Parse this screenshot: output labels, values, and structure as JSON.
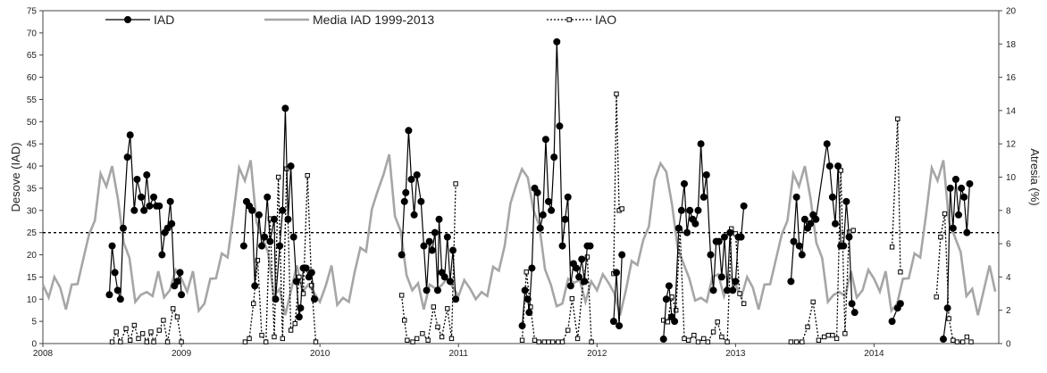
{
  "chart_data": {
    "type": "line",
    "ylabel_left": "Desove (IAD)",
    "ylabel_right": "Atresia (%)",
    "y_left_lim": [
      0,
      75
    ],
    "y_left_ticks": [
      0,
      5,
      10,
      15,
      20,
      25,
      30,
      35,
      40,
      45,
      50,
      55,
      60,
      65,
      70,
      75
    ],
    "y_right_lim": [
      0,
      20
    ],
    "y_right_ticks": [
      0,
      2,
      4,
      6,
      8,
      10,
      12,
      14,
      16,
      18,
      20
    ],
    "x_lim": [
      2008.0,
      2014.9
    ],
    "x_ticks": [
      "2008",
      "2009",
      "2010",
      "2011",
      "2012",
      "2013",
      "2014"
    ],
    "reference_line": {
      "axis": "left",
      "value": 25
    },
    "legend": {
      "placement": "top",
      "entries": [
        "IAD",
        "Media IAD  1999-2013",
        "IAO"
      ]
    },
    "colors": {
      "iad": "#000000",
      "media": "#a6a6a6",
      "iao": "#000000",
      "reference": "#000000"
    },
    "series": [
      {
        "name": "Media IAD  1999-2013",
        "axis": "left",
        "values_by_month": [
          12,
          13,
          15,
          10,
          9,
          12,
          16,
          19,
          22,
          29,
          37,
          38,
          40,
          30,
          24,
          18,
          12,
          11,
          9,
          12,
          15,
          13,
          12,
          14
        ]
      },
      {
        "name": "IAD",
        "axis": "left",
        "points": [
          [
            2008.48,
            11
          ],
          [
            2008.5,
            22
          ],
          [
            2008.52,
            16
          ],
          [
            2008.54,
            12
          ],
          [
            2008.56,
            10
          ],
          [
            2008.58,
            26
          ],
          [
            2008.61,
            42
          ],
          [
            2008.63,
            47
          ],
          [
            2008.66,
            30
          ],
          [
            2008.68,
            37
          ],
          [
            2008.71,
            33
          ],
          [
            2008.73,
            30
          ],
          [
            2008.75,
            38
          ],
          [
            2008.77,
            31
          ],
          [
            2008.8,
            33
          ],
          [
            2008.82,
            31
          ],
          [
            2008.84,
            31
          ],
          [
            2008.86,
            20
          ],
          [
            2008.88,
            25
          ],
          [
            2008.9,
            26
          ],
          [
            2008.92,
            32
          ],
          [
            2008.93,
            27
          ],
          [
            2008.95,
            13
          ],
          [
            2008.97,
            14
          ],
          [
            2008.99,
            16
          ],
          [
            2009.0,
            11
          ],
          [
            2009.45,
            22
          ],
          [
            2009.47,
            32
          ],
          [
            2009.49,
            31
          ],
          [
            2009.51,
            30
          ],
          [
            2009.53,
            13
          ],
          [
            2009.56,
            29
          ],
          [
            2009.58,
            22
          ],
          [
            2009.6,
            24
          ],
          [
            2009.62,
            33
          ],
          [
            2009.64,
            23
          ],
          [
            2009.67,
            28
          ],
          [
            2009.68,
            10
          ],
          [
            2009.71,
            22
          ],
          [
            2009.73,
            30
          ],
          [
            2009.75,
            53
          ],
          [
            2009.77,
            28
          ],
          [
            2009.79,
            40
          ],
          [
            2009.81,
            24
          ],
          [
            2009.83,
            14
          ],
          [
            2009.85,
            6
          ],
          [
            2009.86,
            8
          ],
          [
            2009.88,
            17
          ],
          [
            2009.9,
            17
          ],
          [
            2009.92,
            15
          ],
          [
            2009.94,
            16
          ],
          [
            2009.96,
            10
          ],
          [
            2010.59,
            20
          ],
          [
            2010.61,
            32
          ],
          [
            2010.62,
            34
          ],
          [
            2010.64,
            48
          ],
          [
            2010.66,
            37
          ],
          [
            2010.68,
            29
          ],
          [
            2010.7,
            38
          ],
          [
            2010.73,
            32
          ],
          [
            2010.75,
            22
          ],
          [
            2010.77,
            12
          ],
          [
            2010.79,
            23
          ],
          [
            2010.81,
            21
          ],
          [
            2010.83,
            25
          ],
          [
            2010.85,
            12
          ],
          [
            2010.86,
            28
          ],
          [
            2010.88,
            16
          ],
          [
            2010.9,
            15
          ],
          [
            2010.92,
            24
          ],
          [
            2010.94,
            14
          ],
          [
            2010.96,
            21
          ],
          [
            2010.98,
            10
          ],
          [
            2011.46,
            4
          ],
          [
            2011.48,
            12
          ],
          [
            2011.5,
            10
          ],
          [
            2011.51,
            7
          ],
          [
            2011.53,
            17
          ],
          [
            2011.55,
            35
          ],
          [
            2011.57,
            34
          ],
          [
            2011.59,
            26
          ],
          [
            2011.61,
            29
          ],
          [
            2011.63,
            46
          ],
          [
            2011.65,
            32
          ],
          [
            2011.67,
            30
          ],
          [
            2011.69,
            42
          ],
          [
            2011.71,
            68
          ],
          [
            2011.73,
            49
          ],
          [
            2011.75,
            22
          ],
          [
            2011.77,
            28
          ],
          [
            2011.79,
            33
          ],
          [
            2011.81,
            13
          ],
          [
            2011.83,
            18
          ],
          [
            2011.85,
            17
          ],
          [
            2011.87,
            15
          ],
          [
            2011.89,
            19
          ],
          [
            2011.91,
            14
          ],
          [
            2011.93,
            22
          ],
          [
            2011.95,
            22
          ],
          [
            2012.12,
            5
          ],
          [
            2012.14,
            16
          ],
          [
            2012.16,
            4
          ],
          [
            2012.18,
            20
          ],
          [
            2012.48,
            1
          ],
          [
            2012.5,
            10
          ],
          [
            2012.52,
            13
          ],
          [
            2012.54,
            6
          ],
          [
            2012.56,
            5
          ],
          [
            2012.59,
            26
          ],
          [
            2012.61,
            30
          ],
          [
            2012.63,
            36
          ],
          [
            2012.65,
            25
          ],
          [
            2012.67,
            30
          ],
          [
            2012.69,
            28
          ],
          [
            2012.71,
            27
          ],
          [
            2012.73,
            30
          ],
          [
            2012.75,
            45
          ],
          [
            2012.77,
            33
          ],
          [
            2012.79,
            38
          ],
          [
            2012.82,
            20
          ],
          [
            2012.84,
            12
          ],
          [
            2012.86,
            23
          ],
          [
            2012.88,
            23
          ],
          [
            2012.9,
            15
          ],
          [
            2012.92,
            24
          ],
          [
            2012.94,
            12
          ],
          [
            2012.96,
            25
          ],
          [
            2012.98,
            12
          ],
          [
            2013.0,
            14
          ],
          [
            2013.02,
            24
          ],
          [
            2013.04,
            24
          ],
          [
            2013.06,
            31
          ],
          [
            2013.4,
            14
          ],
          [
            2013.42,
            23
          ],
          [
            2013.44,
            33
          ],
          [
            2013.46,
            22
          ],
          [
            2013.48,
            20
          ],
          [
            2013.5,
            28
          ],
          [
            2013.52,
            26
          ],
          [
            2013.54,
            27
          ],
          [
            2013.56,
            29
          ],
          [
            2013.58,
            28
          ],
          [
            2013.66,
            45
          ],
          [
            2013.68,
            40
          ],
          [
            2013.7,
            33
          ],
          [
            2013.72,
            27
          ],
          [
            2013.74,
            40
          ],
          [
            2013.76,
            22
          ],
          [
            2013.78,
            22
          ],
          [
            2013.8,
            32
          ],
          [
            2013.82,
            24
          ],
          [
            2013.84,
            9
          ],
          [
            2013.86,
            7
          ],
          [
            2014.13,
            5
          ],
          [
            2014.17,
            8
          ],
          [
            2014.19,
            9
          ],
          [
            2014.5,
            1
          ],
          [
            2014.53,
            8
          ],
          [
            2014.55,
            35
          ],
          [
            2014.57,
            26
          ],
          [
            2014.59,
            37
          ],
          [
            2014.61,
            29
          ],
          [
            2014.63,
            35
          ],
          [
            2014.65,
            33
          ],
          [
            2014.67,
            25
          ],
          [
            2014.69,
            36
          ]
        ]
      },
      {
        "name": "IAO",
        "axis": "right",
        "points": [
          [
            2008.5,
            0.1
          ],
          [
            2008.53,
            0.7
          ],
          [
            2008.56,
            0.1
          ],
          [
            2008.6,
            0.9
          ],
          [
            2008.63,
            0.2
          ],
          [
            2008.66,
            1.1
          ],
          [
            2008.69,
            0.3
          ],
          [
            2008.72,
            0.6
          ],
          [
            2008.75,
            0.1
          ],
          [
            2008.78,
            0.7
          ],
          [
            2008.8,
            0.1
          ],
          [
            2008.84,
            0.8
          ],
          [
            2008.87,
            1.4
          ],
          [
            2008.9,
            0.1
          ],
          [
            2008.94,
            2.1
          ],
          [
            2008.97,
            1.6
          ],
          [
            2009.0,
            0.1
          ],
          [
            2009.46,
            0.1
          ],
          [
            2009.49,
            0.3
          ],
          [
            2009.52,
            2.4
          ],
          [
            2009.55,
            5.0
          ],
          [
            2009.58,
            0.5
          ],
          [
            2009.61,
            0.1
          ],
          [
            2009.64,
            7.5
          ],
          [
            2009.67,
            0.4
          ],
          [
            2009.7,
            10.0
          ],
          [
            2009.73,
            0.3
          ],
          [
            2009.76,
            10.5
          ],
          [
            2009.79,
            0.8
          ],
          [
            2009.82,
            1.2
          ],
          [
            2009.85,
            4.0
          ],
          [
            2009.88,
            3.0
          ],
          [
            2009.91,
            10.1
          ],
          [
            2009.94,
            3.5
          ],
          [
            2009.97,
            0.1
          ],
          [
            2010.59,
            2.9
          ],
          [
            2010.61,
            1.4
          ],
          [
            2010.63,
            0.2
          ],
          [
            2010.67,
            0.1
          ],
          [
            2010.7,
            0.3
          ],
          [
            2010.74,
            0.6
          ],
          [
            2010.78,
            0.2
          ],
          [
            2010.82,
            2.2
          ],
          [
            2010.85,
            1.0
          ],
          [
            2010.88,
            0.4
          ],
          [
            2010.92,
            2.1
          ],
          [
            2010.95,
            0.3
          ],
          [
            2010.98,
            9.6
          ],
          [
            2011.46,
            0.2
          ],
          [
            2011.49,
            4.3
          ],
          [
            2011.52,
            2.2
          ],
          [
            2011.55,
            0.2
          ],
          [
            2011.58,
            0.1
          ],
          [
            2011.62,
            0.1
          ],
          [
            2011.65,
            0.1
          ],
          [
            2011.68,
            0.1
          ],
          [
            2011.72,
            0.1
          ],
          [
            2011.75,
            0.1
          ],
          [
            2011.79,
            0.8
          ],
          [
            2011.82,
            2.7
          ],
          [
            2011.86,
            0.3
          ],
          [
            2011.9,
            3.7
          ],
          [
            2011.93,
            5.2
          ],
          [
            2011.96,
            0.1
          ],
          [
            2012.12,
            4.2
          ],
          [
            2012.14,
            15.0
          ],
          [
            2012.16,
            8.0
          ],
          [
            2012.18,
            8.1
          ],
          [
            2012.48,
            1.4
          ],
          [
            2012.51,
            1.3
          ],
          [
            2012.54,
            2.8
          ],
          [
            2012.57,
            2.0
          ],
          [
            2012.6,
            6.8
          ],
          [
            2012.63,
            0.3
          ],
          [
            2012.66,
            0.2
          ],
          [
            2012.7,
            0.5
          ],
          [
            2012.73,
            0.1
          ],
          [
            2012.77,
            0.3
          ],
          [
            2012.8,
            0.1
          ],
          [
            2012.84,
            0.7
          ],
          [
            2012.87,
            1.3
          ],
          [
            2012.9,
            0.4
          ],
          [
            2012.94,
            0.1
          ],
          [
            2012.97,
            6.9
          ],
          [
            2013.0,
            6.6
          ],
          [
            2013.03,
            3.0
          ],
          [
            2013.06,
            2.4
          ],
          [
            2013.4,
            0.1
          ],
          [
            2013.44,
            0.1
          ],
          [
            2013.48,
            0.1
          ],
          [
            2013.52,
            1.0
          ],
          [
            2013.56,
            2.5
          ],
          [
            2013.6,
            0.2
          ],
          [
            2013.64,
            0.4
          ],
          [
            2013.67,
            0.5
          ],
          [
            2013.7,
            0.5
          ],
          [
            2013.73,
            0.3
          ],
          [
            2013.76,
            10.4
          ],
          [
            2013.79,
            0.6
          ],
          [
            2013.82,
            6.7
          ],
          [
            2013.85,
            6.8
          ],
          [
            2014.13,
            5.8
          ],
          [
            2014.17,
            13.5
          ],
          [
            2014.19,
            4.3
          ],
          [
            2014.45,
            2.8
          ],
          [
            2014.48,
            6.4
          ],
          [
            2014.51,
            7.8
          ],
          [
            2014.54,
            1.5
          ],
          [
            2014.57,
            0.2
          ],
          [
            2014.6,
            0.1
          ],
          [
            2014.64,
            0.1
          ],
          [
            2014.67,
            0.4
          ],
          [
            2014.7,
            0.1
          ]
        ]
      }
    ]
  }
}
